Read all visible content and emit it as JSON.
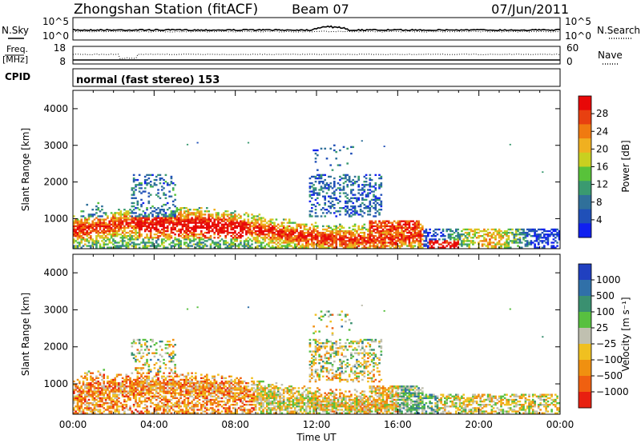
{
  "header": {
    "station": "Zhongshan Station (fitACF)",
    "beam": "Beam 07",
    "date": "07/Jun/2011"
  },
  "top_panels": {
    "nsky_label": "N.Sky",
    "nsearch_label": "N.Search",
    "noise_tick_top": "10^5",
    "noise_tick_bottom": "10^0",
    "freq_label": "Freq.",
    "freq_unit": "[MHz]",
    "freq_tick_top": "18",
    "freq_tick_bottom": "8",
    "nave_label": "Nave",
    "nave_tick_top": "60",
    "nave_tick_bottom": "0",
    "cpid_label": "CPID",
    "cpid_value": "normal (fast stereo) 153"
  },
  "chart_data": [
    {
      "type": "heatmap",
      "name": "power",
      "ylabel": "Slant Range [km]",
      "xlabel": "",
      "y_ticks": [
        "1000",
        "2000",
        "3000",
        "4000"
      ],
      "ylim": [
        180,
        4500
      ],
      "colorbar": {
        "label": "Power [dB]",
        "ticks": [
          "4",
          "8",
          "12",
          "16",
          "20",
          "24",
          "28"
        ],
        "range": [
          0,
          32
        ],
        "colors": [
          "#1020f0",
          "#2050b8",
          "#30709a",
          "#3a9a70",
          "#58c23a",
          "#c8d020",
          "#f0b020",
          "#f07a10",
          "#e84010",
          "#e80808"
        ]
      }
    },
    {
      "type": "heatmap",
      "name": "velocity",
      "ylabel": "Slant Range [km]",
      "xlabel": "Time UT",
      "x_ticks": [
        "00:00",
        "04:00",
        "08:00",
        "12:00",
        "16:00",
        "20:00",
        "00:00"
      ],
      "y_ticks": [
        "1000",
        "2000",
        "3000",
        "4000"
      ],
      "ylim": [
        180,
        4500
      ],
      "colorbar": {
        "label": "Velocity [m s⁻¹]",
        "ticks": [
          "1000",
          "500",
          "100",
          "25",
          "−25",
          "−100",
          "−500",
          "−1000"
        ],
        "colors": [
          "#2040c0",
          "#3070a8",
          "#3a9070",
          "#58c040",
          "#c0c0b0",
          "#f0c020",
          "#f09010",
          "#f06010",
          "#e82010"
        ]
      }
    }
  ]
}
